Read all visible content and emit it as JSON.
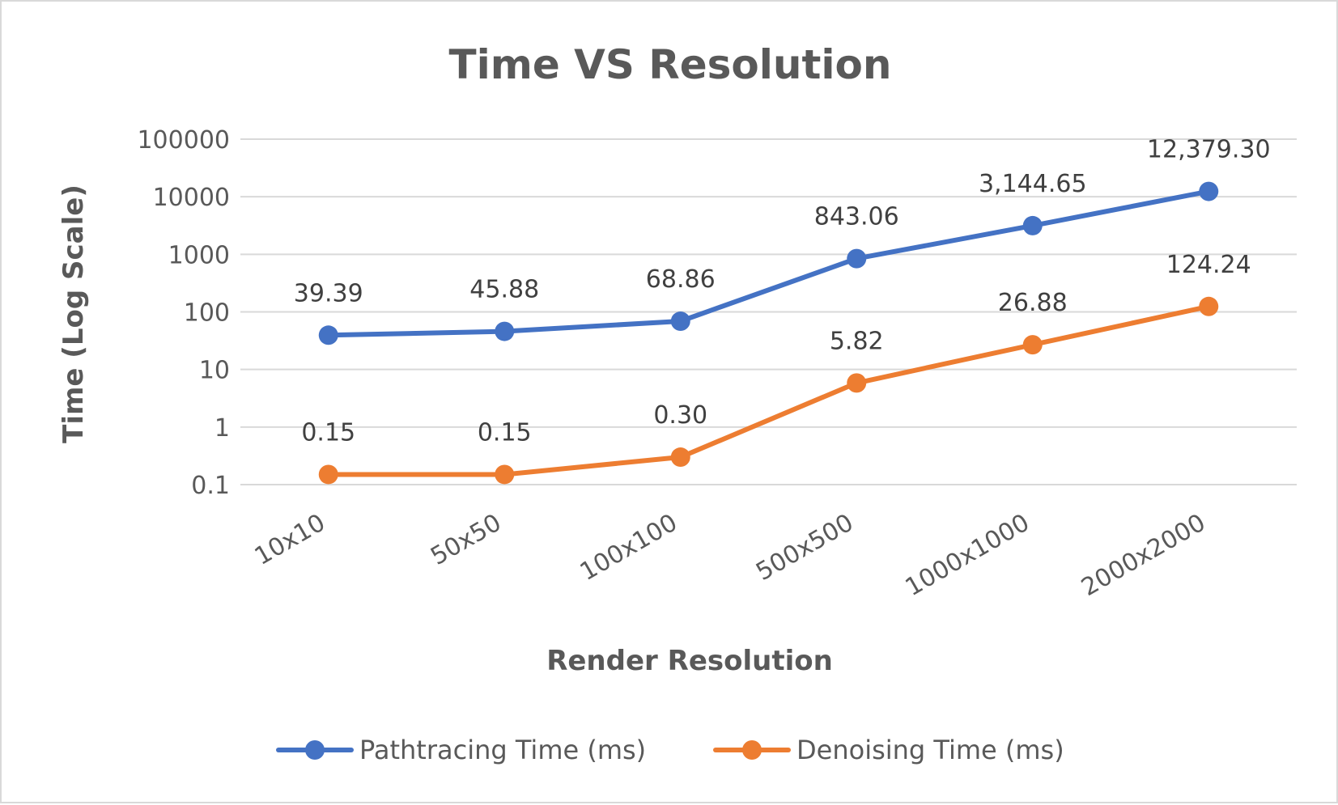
{
  "chart_data": {
    "type": "line",
    "title": "Time VS Resolution",
    "xlabel": "Render Resolution",
    "ylabel": "Time (Log Scale)",
    "y_scale": "log",
    "ylim": [
      0.1,
      100000
    ],
    "y_ticks": [
      "0.1",
      "1",
      "10",
      "100",
      "1000",
      "10000",
      "100000"
    ],
    "y_tick_values": [
      0.1,
      1,
      10,
      100,
      1000,
      10000,
      100000
    ],
    "categories": [
      "10x10",
      "50x50",
      "100x100",
      "500x500",
      "1000x1000",
      "2000x2000"
    ],
    "grid": true,
    "legend_position": "bottom",
    "series": [
      {
        "name": "Pathtracing Time (ms)",
        "color": "#4472c4",
        "values": [
          39.39,
          45.88,
          68.86,
          843.06,
          3144.65,
          12379.3
        ],
        "labels": [
          "39.39",
          "45.88",
          "68.86",
          "843.06",
          "3,144.65",
          "12,379.30"
        ]
      },
      {
        "name": "Denoising Time (ms)",
        "color": "#ed7d31",
        "values": [
          0.15,
          0.15,
          0.3,
          5.82,
          26.88,
          124.24
        ],
        "labels": [
          "0.15",
          "0.15",
          "0.30",
          "5.82",
          "26.88",
          "124.24"
        ]
      }
    ]
  }
}
